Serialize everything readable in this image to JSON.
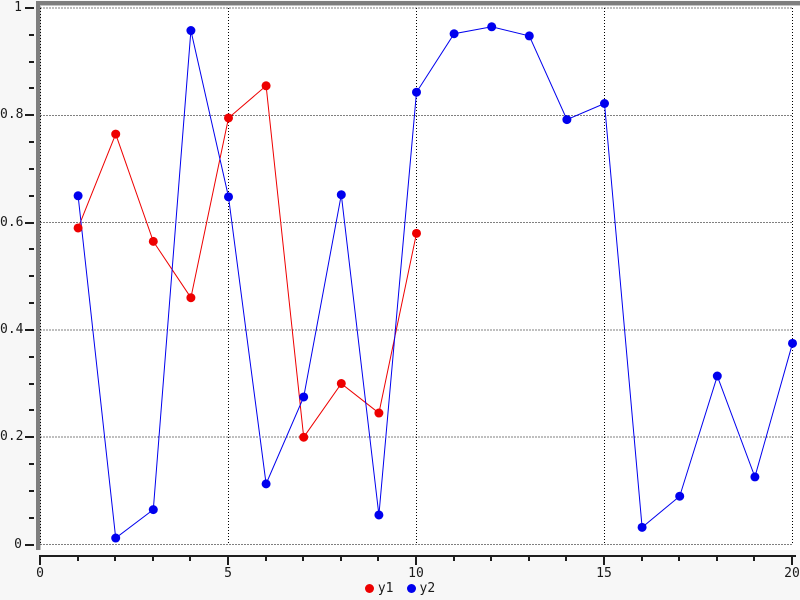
{
  "chart_data": {
    "type": "line",
    "title": "",
    "xlabel": "",
    "ylabel": "",
    "xlim": [
      0,
      20
    ],
    "ylim": [
      0,
      1
    ],
    "grid": "dotted",
    "grid_color": "#000000",
    "axis_color": "#1c1c1c",
    "panel_border_color": "#7e7e7e",
    "legend_position": "bottom-center",
    "x_ticks_major": [
      0,
      5,
      10,
      15,
      20
    ],
    "x_tick_labels": [
      "0",
      "5",
      "10",
      "15",
      "20"
    ],
    "x_minor_step": 1,
    "y_ticks_major": [
      0,
      0.2,
      0.4,
      0.6,
      0.8,
      1
    ],
    "y_tick_labels": [
      "0",
      "0.2",
      "0.4",
      "0.6",
      "0.8",
      "1"
    ],
    "y_minor_step": 0.05,
    "series": [
      {
        "name": "y1",
        "color": "#ee0000",
        "marker": "circle",
        "x": [
          1,
          2,
          3,
          4,
          5,
          6,
          7,
          8,
          9,
          10
        ],
        "y": [
          0.59,
          0.765,
          0.565,
          0.46,
          0.795,
          0.855,
          0.2,
          0.3,
          0.245,
          0.58
        ]
      },
      {
        "name": "y2",
        "color": "#0000ee",
        "marker": "circle",
        "x": [
          1,
          2,
          3,
          4,
          5,
          6,
          7,
          8,
          9,
          10,
          11,
          12,
          13,
          14,
          15,
          16,
          17,
          18,
          19,
          20
        ],
        "y": [
          0.65,
          0.012,
          0.065,
          0.958,
          0.648,
          0.113,
          0.275,
          0.652,
          0.055,
          0.843,
          0.952,
          0.965,
          0.948,
          0.792,
          0.822,
          0.032,
          0.09,
          0.314,
          0.126,
          0.375
        ]
      }
    ]
  },
  "legend": {
    "items": [
      {
        "label": "y1",
        "color": "#ee0000"
      },
      {
        "label": "y2",
        "color": "#0000ee"
      }
    ]
  }
}
